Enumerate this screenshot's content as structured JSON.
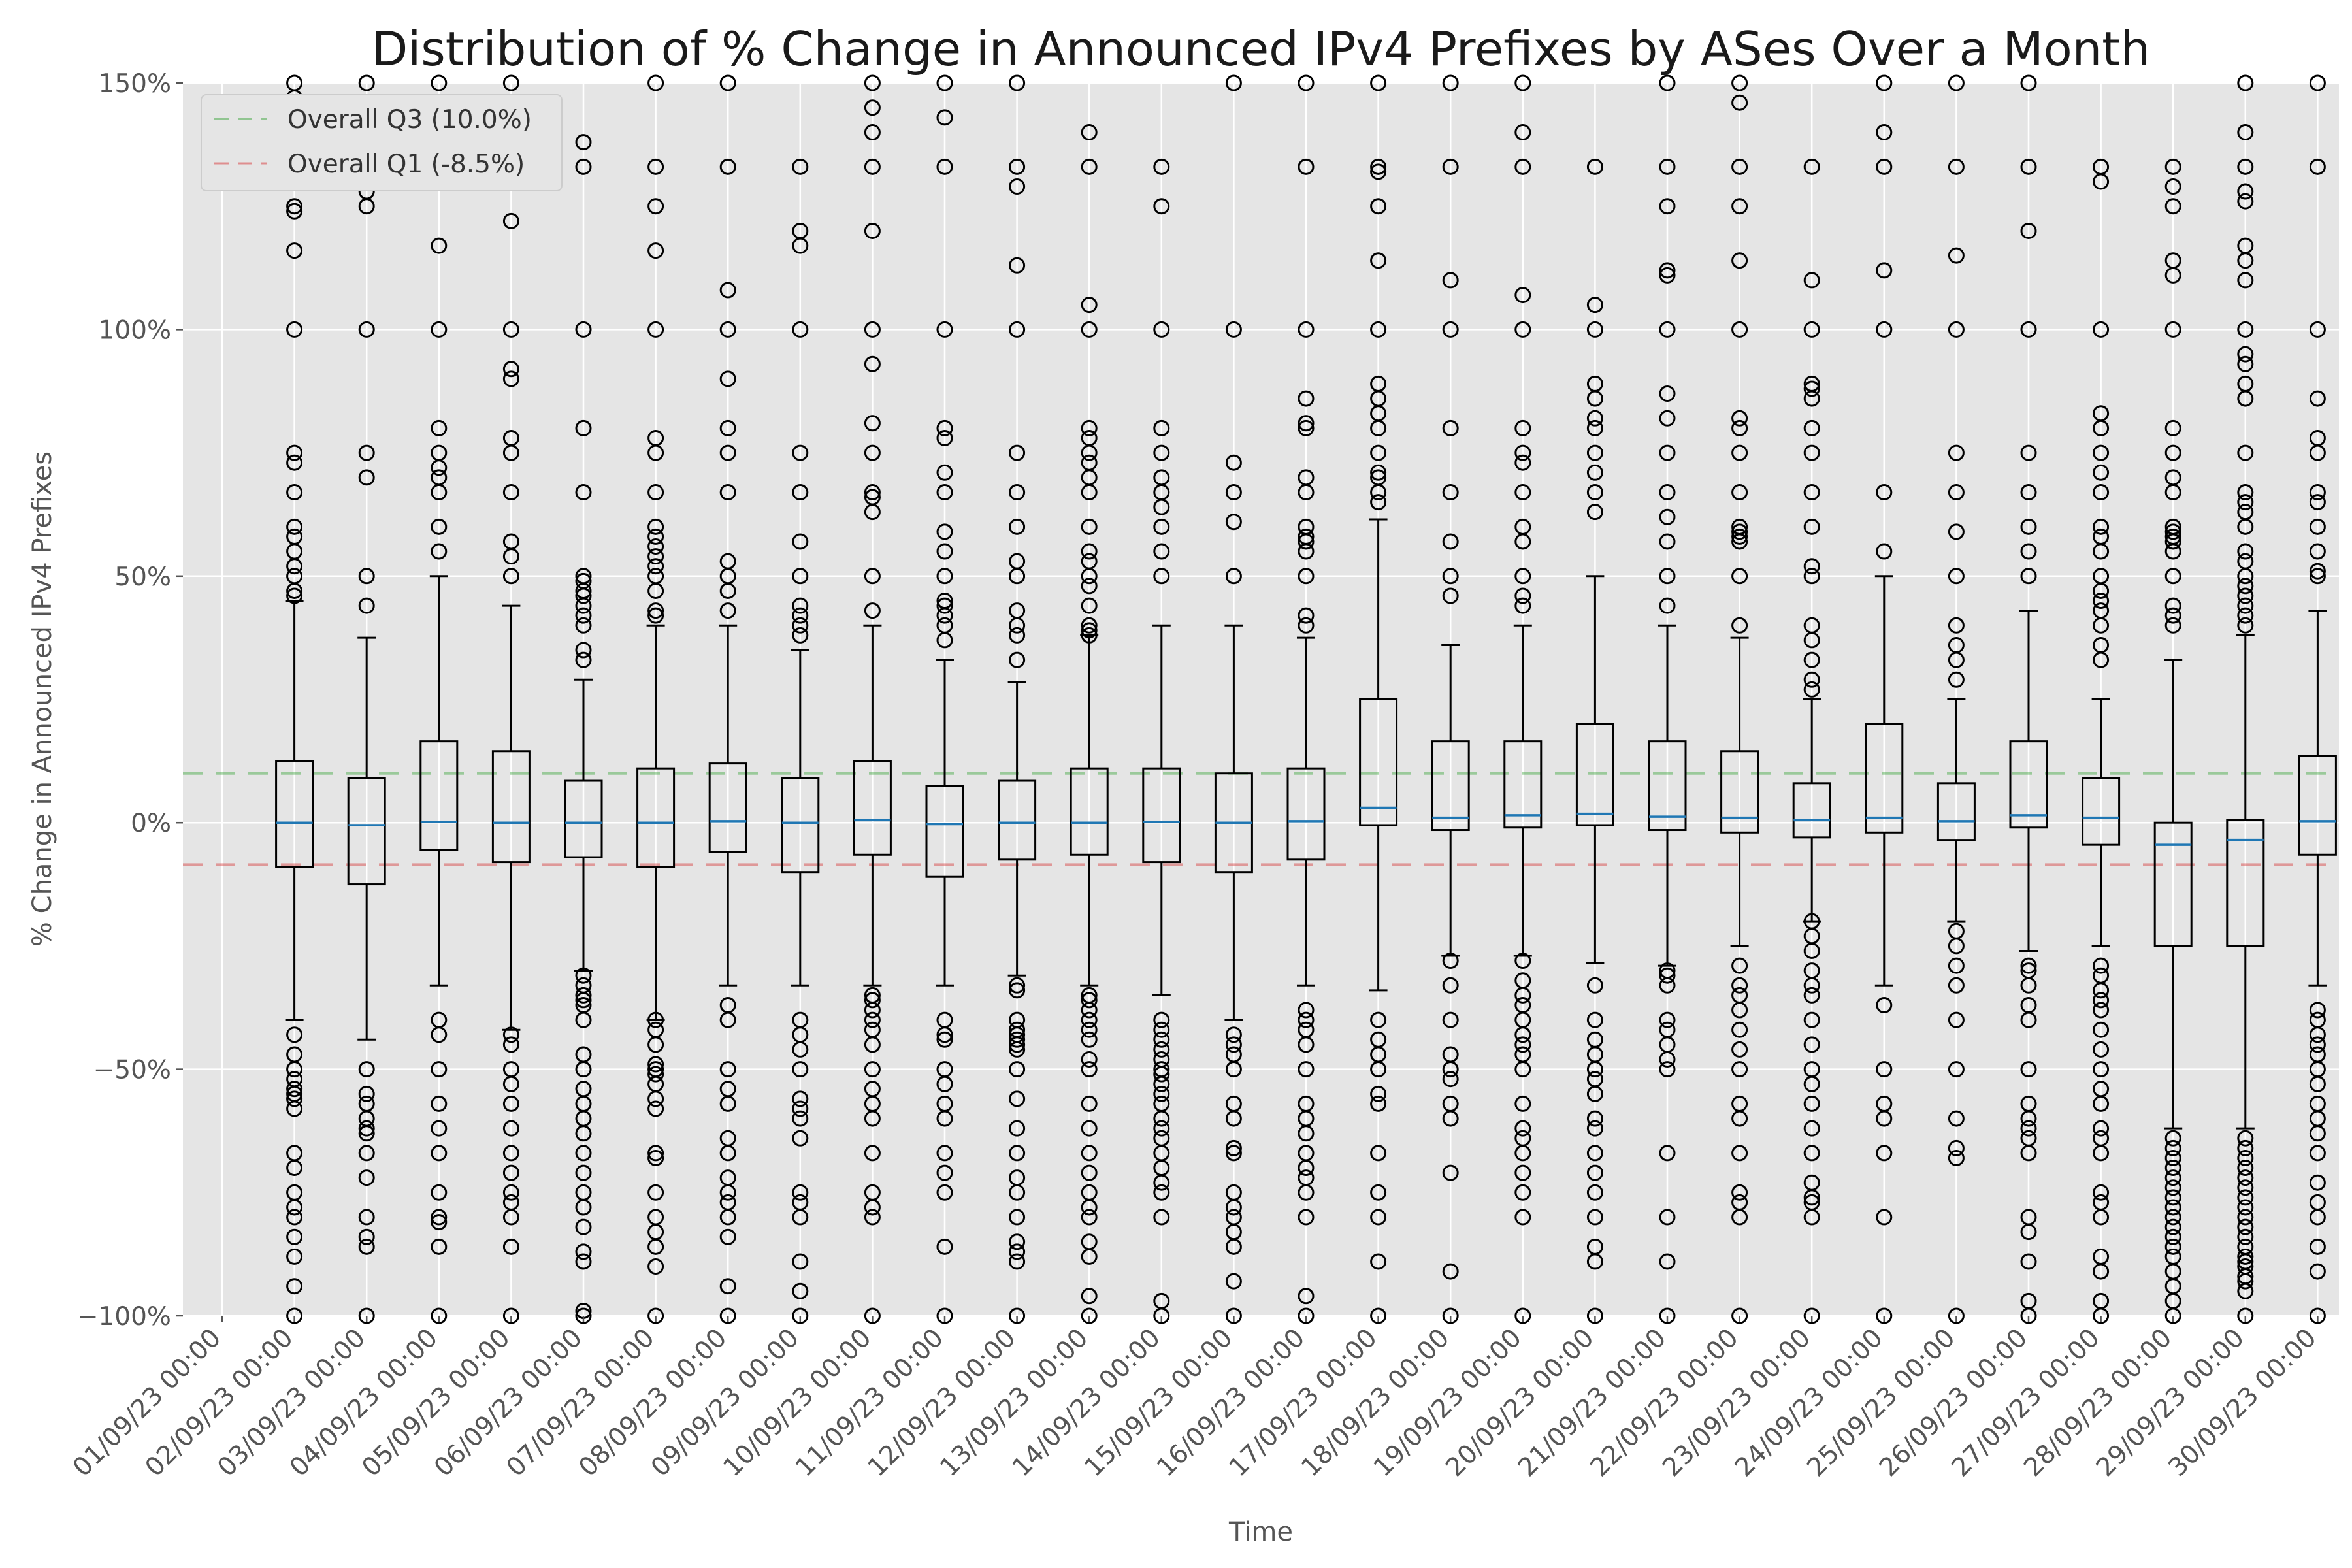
{
  "chart_data": {
    "type": "box",
    "title": "Distribution of % Change in Announced IPv4 Prefixes by ASes Over a Month",
    "xlabel": "Time",
    "ylabel": "% Change in Announced IPv4 Prefixes",
    "ylim": [
      -100,
      150
    ],
    "yticks": [
      -100,
      -50,
      0,
      50,
      100,
      150
    ],
    "ytick_labels": [
      "−100%",
      "−50%",
      "0%",
      "50%",
      "100%",
      "150%"
    ],
    "grid": true,
    "legend_position": "top-left",
    "reference_lines": [
      {
        "name": "Overall Q3 (10.0%)",
        "value": 10.0,
        "color": "#2ca02c"
      },
      {
        "name": "Overall Q1 (-8.5%)",
        "value": -8.5,
        "color": "#d62728"
      }
    ],
    "x_tick_labels": [
      "01/09/23 00:00",
      "02/09/23 00:00",
      "03/09/23 00:00",
      "04/09/23 00:00",
      "05/09/23 00:00",
      "06/09/23 00:00",
      "07/09/23 00:00",
      "08/09/23 00:00",
      "09/09/23 00:00",
      "10/09/23 00:00",
      "11/09/23 00:00",
      "12/09/23 00:00",
      "13/09/23 00:00",
      "14/09/23 00:00",
      "15/09/23 00:00",
      "16/09/23 00:00",
      "17/09/23 00:00",
      "18/09/23 00:00",
      "19/09/23 00:00",
      "20/09/23 00:00",
      "21/09/23 00:00",
      "22/09/23 00:00",
      "23/09/23 00:00",
      "24/09/23 00:00",
      "25/09/23 00:00",
      "26/09/23 00:00",
      "27/09/23 00:00",
      "28/09/23 00:00",
      "29/09/23 00:00",
      "30/09/23 00:00"
    ],
    "boxes": [
      {
        "position": 2,
        "q1": -9,
        "median": 0,
        "q3": 12.5,
        "whisker_low": -40,
        "whisker_high": 45,
        "outliers": [
          -100,
          -94,
          -88,
          -84,
          -80,
          -78,
          -75,
          -70,
          -67,
          -58,
          -56,
          -55,
          -54,
          -52,
          -50,
          -47,
          -43,
          46,
          47,
          50,
          52,
          55,
          58,
          60,
          67,
          73,
          75,
          100,
          116,
          124,
          125,
          133,
          139,
          144,
          147,
          150
        ]
      },
      {
        "position": 3,
        "q1": -12.5,
        "median": -0.5,
        "q3": 9,
        "whisker_low": -44,
        "whisker_high": 37.5,
        "outliers": [
          -100,
          -86,
          -84,
          -80,
          -72,
          -67,
          -63,
          -62,
          -60,
          -57,
          -55,
          -50,
          44,
          50,
          70,
          75,
          100,
          125,
          128,
          130,
          136,
          142,
          150
        ]
      },
      {
        "position": 4,
        "q1": -5.5,
        "median": 0.2,
        "q3": 16.5,
        "whisker_low": -33,
        "whisker_high": 50,
        "outliers": [
          -100,
          -86,
          -81,
          -80,
          -75,
          -67,
          -62,
          -57,
          -50,
          -43,
          -40,
          55,
          60,
          67,
          70,
          72,
          75,
          80,
          100,
          117,
          133,
          140,
          150
        ]
      },
      {
        "position": 5,
        "q1": -8,
        "median": 0,
        "q3": 14.5,
        "whisker_low": -42,
        "whisker_high": 44,
        "outliers": [
          -100,
          -86,
          -80,
          -77,
          -75,
          -71,
          -67,
          -62,
          -57,
          -53,
          -50,
          -45,
          -43,
          50,
          54,
          57,
          67,
          75,
          78,
          90,
          92,
          100,
          122,
          133,
          140,
          150
        ]
      },
      {
        "position": 6,
        "q1": -7,
        "median": 0,
        "q3": 8.5,
        "whisker_low": -30,
        "whisker_high": 29,
        "outliers": [
          -100,
          -99,
          -89,
          -87,
          -82,
          -78,
          -75,
          -71,
          -67,
          -63,
          -60,
          -57,
          -54,
          -50,
          -47,
          -40,
          -37,
          -36,
          -35,
          -33,
          -31,
          33,
          35,
          40,
          42,
          44,
          46,
          47,
          49,
          50,
          67,
          80,
          100,
          133,
          138
        ]
      },
      {
        "position": 7,
        "q1": -9,
        "median": 0,
        "q3": 11,
        "whisker_low": -40,
        "whisker_high": 40,
        "outliers": [
          -100,
          -90,
          -86,
          -83,
          -80,
          -75,
          -68,
          -67,
          -58,
          -56,
          -53,
          -51,
          -50,
          -49,
          -45,
          -42,
          -40,
          42,
          43,
          47,
          50,
          52,
          54,
          56,
          58,
          60,
          67,
          75,
          78,
          100,
          116,
          125,
          133,
          150
        ]
      },
      {
        "position": 8,
        "q1": -6,
        "median": 0.3,
        "q3": 12,
        "whisker_low": -33,
        "whisker_high": 40,
        "outliers": [
          -100,
          -94,
          -84,
          -80,
          -77,
          -75,
          -72,
          -67,
          -64,
          -57,
          -54,
          -50,
          -40,
          -37,
          43,
          47,
          50,
          53,
          67,
          75,
          80,
          90,
          100,
          108,
          133,
          150
        ]
      },
      {
        "position": 9,
        "q1": -10,
        "median": 0,
        "q3": 9,
        "whisker_low": -33,
        "whisker_high": 35,
        "outliers": [
          -100,
          -95,
          -89,
          -80,
          -77,
          -75,
          -64,
          -60,
          -58,
          -56,
          -50,
          -46,
          -43,
          -40,
          38,
          40,
          42,
          44,
          50,
          57,
          67,
          75,
          100,
          117,
          120,
          133
        ]
      },
      {
        "position": 10,
        "q1": -6.5,
        "median": 0.5,
        "q3": 12.5,
        "whisker_low": -33,
        "whisker_high": 40,
        "outliers": [
          -100,
          -80,
          -78,
          -75,
          -67,
          -60,
          -57,
          -54,
          -50,
          -45,
          -42,
          -40,
          -38,
          -36,
          -35,
          43,
          50,
          63,
          66,
          67,
          75,
          81,
          93,
          100,
          120,
          133,
          140,
          145,
          150
        ]
      },
      {
        "position": 11,
        "q1": -11,
        "median": -0.3,
        "q3": 7.5,
        "whisker_low": -33,
        "whisker_high": 33,
        "outliers": [
          -100,
          -86,
          -75,
          -71,
          -67,
          -60,
          -57,
          -53,
          -50,
          -44,
          -43,
          -40,
          37,
          40,
          42,
          44,
          45,
          50,
          55,
          59,
          67,
          71,
          78,
          80,
          100,
          133,
          143,
          150
        ]
      },
      {
        "position": 12,
        "q1": -7.5,
        "median": 0,
        "q3": 8.5,
        "whisker_low": -31,
        "whisker_high": 28.5,
        "outliers": [
          -100,
          -89,
          -87,
          -85,
          -80,
          -75,
          -72,
          -67,
          -62,
          -56,
          -50,
          -46,
          -45,
          -44,
          -43,
          -42,
          -40,
          -34,
          -33,
          33,
          38,
          40,
          43,
          50,
          53,
          60,
          67,
          75,
          100,
          113,
          129,
          133,
          150
        ]
      },
      {
        "position": 13,
        "q1": -6.5,
        "median": 0,
        "q3": 11,
        "whisker_low": -33,
        "whisker_high": 38,
        "outliers": [
          -100,
          -96,
          -88,
          -85,
          -80,
          -78,
          -75,
          -71,
          -67,
          -62,
          -57,
          -50,
          -48,
          -44,
          -42,
          -40,
          -38,
          -36,
          -35,
          38,
          39,
          40,
          44,
          48,
          50,
          53,
          55,
          60,
          67,
          70,
          73,
          75,
          78,
          80,
          100,
          105,
          133,
          140
        ]
      },
      {
        "position": 14,
        "q1": -8,
        "median": 0.2,
        "q3": 11,
        "whisker_low": -35,
        "whisker_high": 40,
        "outliers": [
          -100,
          -97,
          -80,
          -75,
          -73,
          -70,
          -67,
          -64,
          -62,
          -60,
          -57,
          -55,
          -53,
          -51,
          -50,
          -48,
          -46,
          -44,
          -42,
          -40,
          50,
          55,
          60,
          64,
          67,
          70,
          75,
          80,
          100,
          125,
          133
        ]
      },
      {
        "position": 15,
        "q1": -10,
        "median": 0,
        "q3": 10,
        "whisker_low": -40,
        "whisker_high": 40,
        "outliers": [
          -100,
          -93,
          -86,
          -83,
          -80,
          -78,
          -75,
          -67,
          -66,
          -60,
          -57,
          -50,
          -47,
          -45,
          -43,
          50,
          61,
          67,
          73,
          100,
          150
        ]
      },
      {
        "position": 16,
        "q1": -7.5,
        "median": 0.3,
        "q3": 11,
        "whisker_low": -33,
        "whisker_high": 37.5,
        "outliers": [
          -100,
          -96,
          -80,
          -75,
          -72,
          -70,
          -67,
          -63,
          -60,
          -57,
          -50,
          -45,
          -42,
          -40,
          -38,
          40,
          42,
          50,
          55,
          57,
          58,
          60,
          67,
          70,
          80,
          81,
          86,
          100,
          133,
          150
        ]
      },
      {
        "position": 17,
        "q1": -0.5,
        "median": 3,
        "q3": 25,
        "whisker_low": -34,
        "whisker_high": 61.5,
        "outliers": [
          -100,
          -89,
          -80,
          -75,
          -67,
          -57,
          -55,
          -50,
          -47,
          -44,
          -40,
          65,
          67,
          70,
          71,
          75,
          80,
          83,
          86,
          89,
          100,
          114,
          125,
          132,
          133,
          150
        ]
      },
      {
        "position": 18,
        "q1": -1.5,
        "median": 1,
        "q3": 16.5,
        "whisker_low": -27,
        "whisker_high": 36,
        "outliers": [
          -100,
          -91,
          -71,
          -60,
          -57,
          -52,
          -50,
          -47,
          -40,
          -33,
          -28,
          46,
          50,
          57,
          67,
          80,
          100,
          110,
          133,
          150
        ]
      },
      {
        "position": 19,
        "q1": -1,
        "median": 1.5,
        "q3": 16.5,
        "whisker_low": -27,
        "whisker_high": 40,
        "outliers": [
          -100,
          -80,
          -75,
          -71,
          -67,
          -64,
          -62,
          -57,
          -50,
          -47,
          -45,
          -43,
          -40,
          -37,
          -35,
          -32,
          -28,
          44,
          46,
          50,
          57,
          60,
          67,
          73,
          75,
          80,
          100,
          107,
          133,
          140,
          150
        ]
      },
      {
        "position": 20,
        "q1": -0.5,
        "median": 1.8,
        "q3": 20,
        "whisker_low": -28.5,
        "whisker_high": 50,
        "outliers": [
          -100,
          -89,
          -86,
          -80,
          -75,
          -71,
          -67,
          -62,
          -60,
          -55,
          -52,
          -50,
          -47,
          -44,
          -40,
          -33,
          63,
          67,
          71,
          75,
          80,
          82,
          86,
          89,
          100,
          105,
          133
        ]
      },
      {
        "position": 21,
        "q1": -1.5,
        "median": 1.2,
        "q3": 16.5,
        "whisker_low": -29,
        "whisker_high": 40,
        "outliers": [
          -100,
          -89,
          -80,
          -67,
          -50,
          -48,
          -45,
          -42,
          -40,
          -33,
          -31,
          -30,
          44,
          50,
          57,
          62,
          67,
          75,
          82,
          87,
          100,
          111,
          112,
          125,
          133,
          150
        ]
      },
      {
        "position": 22,
        "q1": -2,
        "median": 1,
        "q3": 14.5,
        "whisker_low": -25,
        "whisker_high": 37.5,
        "outliers": [
          -100,
          -80,
          -77,
          -75,
          -67,
          -60,
          -57,
          -50,
          -46,
          -42,
          -38,
          -35,
          -33,
          -29,
          40,
          50,
          57,
          58,
          59,
          60,
          67,
          75,
          80,
          82,
          100,
          114,
          125,
          133,
          146,
          150
        ]
      },
      {
        "position": 23,
        "q1": -3,
        "median": 0.5,
        "q3": 8,
        "whisker_low": -20,
        "whisker_high": 25,
        "outliers": [
          -100,
          -80,
          -77,
          -76,
          -73,
          -67,
          -62,
          -57,
          -53,
          -50,
          -45,
          -40,
          -35,
          -33,
          -30,
          -26,
          -23,
          -20,
          27,
          29,
          33,
          37,
          40,
          50,
          52,
          60,
          67,
          75,
          80,
          86,
          88,
          89,
          100,
          110,
          133
        ]
      },
      {
        "position": 24,
        "q1": -2,
        "median": 1,
        "q3": 20,
        "whisker_low": -33,
        "whisker_high": 50,
        "outliers": [
          -100,
          -80,
          -67,
          -60,
          -57,
          -50,
          -37,
          55,
          67,
          100,
          112,
          133,
          140,
          150
        ]
      },
      {
        "position": 25,
        "q1": -3.5,
        "median": 0.3,
        "q3": 8,
        "whisker_low": -20,
        "whisker_high": 25,
        "outliers": [
          -100,
          -68,
          -66,
          -60,
          -50,
          -40,
          -33,
          -29,
          -25,
          -22,
          29,
          33,
          36,
          40,
          50,
          59,
          67,
          75,
          100,
          115,
          133,
          150
        ]
      },
      {
        "position": 26,
        "q1": -1,
        "median": 1.5,
        "q3": 16.5,
        "whisker_low": -26,
        "whisker_high": 43,
        "outliers": [
          -100,
          -97,
          -89,
          -83,
          -80,
          -67,
          -64,
          -62,
          -60,
          -57,
          -50,
          -40,
          -37,
          -33,
          -30,
          -29,
          50,
          55,
          60,
          67,
          75,
          100,
          120,
          133,
          150
        ]
      },
      {
        "position": 27,
        "q1": -4.5,
        "median": 1,
        "q3": 9,
        "whisker_low": -25,
        "whisker_high": 25,
        "outliers": [
          -100,
          -97,
          -91,
          -88,
          -80,
          -77,
          -75,
          -67,
          -64,
          -62,
          -57,
          -54,
          -50,
          -46,
          -42,
          -38,
          -36,
          -34,
          -31,
          -29,
          33,
          36,
          40,
          43,
          45,
          47,
          50,
          55,
          58,
          60,
          67,
          71,
          75,
          80,
          83,
          100,
          130,
          133
        ]
      },
      {
        "position": 28,
        "q1": -25,
        "median": -4.5,
        "q3": 0,
        "whisker_low": -62,
        "whisker_high": 33,
        "outliers": [
          -100,
          -97,
          -94,
          -91,
          -88,
          -86,
          -84,
          -82,
          -80,
          -78,
          -76,
          -74,
          -72,
          -70,
          -68,
          -66,
          -64,
          40,
          42,
          44,
          50,
          55,
          57,
          58,
          59,
          60,
          67,
          70,
          75,
          80,
          100,
          111,
          114,
          125,
          129,
          133
        ]
      },
      {
        "position": 29,
        "q1": -25,
        "median": -3.5,
        "q3": 0.5,
        "whisker_low": -62,
        "whisker_high": 38,
        "outliers": [
          -100,
          -95,
          -93,
          -92,
          -90,
          -89,
          -88,
          -86,
          -84,
          -82,
          -80,
          -78,
          -76,
          -74,
          -72,
          -70,
          -68,
          -66,
          -64,
          40,
          42,
          44,
          46,
          48,
          50,
          53,
          55,
          60,
          63,
          65,
          67,
          75,
          86,
          89,
          93,
          95,
          100,
          110,
          114,
          117,
          126,
          128,
          133,
          140,
          150
        ]
      },
      {
        "position": 30,
        "q1": -6.5,
        "median": 0.3,
        "q3": 13.5,
        "whisker_low": -33,
        "whisker_high": 43,
        "outliers": [
          -100,
          -91,
          -86,
          -80,
          -77,
          -73,
          -67,
          -63,
          -60,
          -57,
          -53,
          -50,
          -47,
          -45,
          -43,
          -40,
          -38,
          50,
          51,
          55,
          60,
          65,
          67,
          75,
          78,
          86,
          100,
          133,
          150
        ]
      }
    ]
  }
}
